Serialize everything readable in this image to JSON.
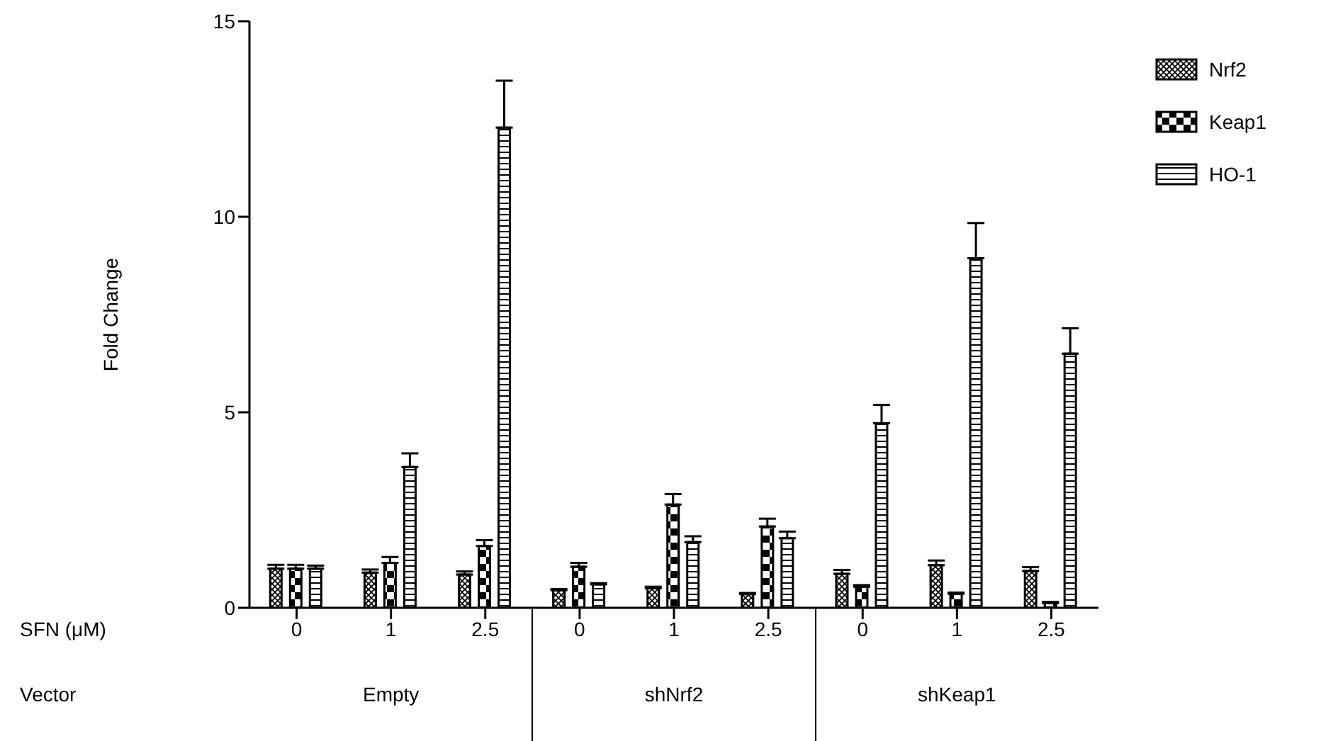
{
  "chart_data": {
    "type": "bar",
    "ylabel": "Fold Change",
    "categories": [
      "0",
      "1",
      "2.5",
      "0",
      "1",
      "2.5",
      "0",
      "1",
      "2.5"
    ],
    "series": [
      {
        "name": "Nrf2",
        "color": "#000000",
        "values": [
          1.0,
          0.9,
          0.85,
          0.45,
          0.5,
          0.35,
          0.87,
          1.09,
          0.94
        ],
        "errors": [
          [
            1.0,
            1.1
          ],
          [
            0.9,
            0.98
          ],
          [
            0.85,
            0.93
          ],
          [
            0.45,
            0.48
          ],
          [
            0.5,
            0.54
          ],
          [
            0.35,
            0.38
          ],
          [
            0.87,
            0.97
          ],
          [
            1.09,
            1.21
          ],
          [
            0.94,
            1.04
          ]
        ]
      },
      {
        "name": "Keap1",
        "color": "#000000",
        "values": [
          1.0,
          1.15,
          1.58,
          1.05,
          2.64,
          2.08,
          0.54,
          0.36,
          0.12
        ],
        "errors": [
          [
            1.0,
            1.1
          ],
          [
            1.15,
            1.3
          ],
          [
            1.58,
            1.73
          ],
          [
            1.05,
            1.15
          ],
          [
            2.64,
            2.91
          ],
          [
            2.08,
            2.28
          ],
          [
            0.54,
            0.58
          ],
          [
            0.36,
            0.39
          ],
          [
            0.12,
            0.15
          ]
        ]
      },
      {
        "name": "HO-1",
        "color": "#000000",
        "values": [
          1.0,
          3.6,
          12.28,
          0.6,
          1.68,
          1.78,
          4.72,
          8.94,
          6.5
        ],
        "errors": [
          [
            1.0,
            1.08
          ],
          [
            3.6,
            3.95
          ],
          [
            12.28,
            13.48
          ],
          [
            0.6,
            0.63
          ],
          [
            1.68,
            1.83
          ],
          [
            1.78,
            1.95
          ],
          [
            4.72,
            5.19
          ],
          [
            8.94,
            9.84
          ],
          [
            6.5,
            7.15
          ]
        ]
      }
    ],
    "annotations": [
      "SFN (μM)",
      "Vector",
      "Empty",
      "shNrf2",
      "shKeap1"
    ],
    "ylim": [
      0,
      15
    ],
    "yticks": [
      0,
      5,
      10,
      15
    ],
    "legend": "top right"
  }
}
